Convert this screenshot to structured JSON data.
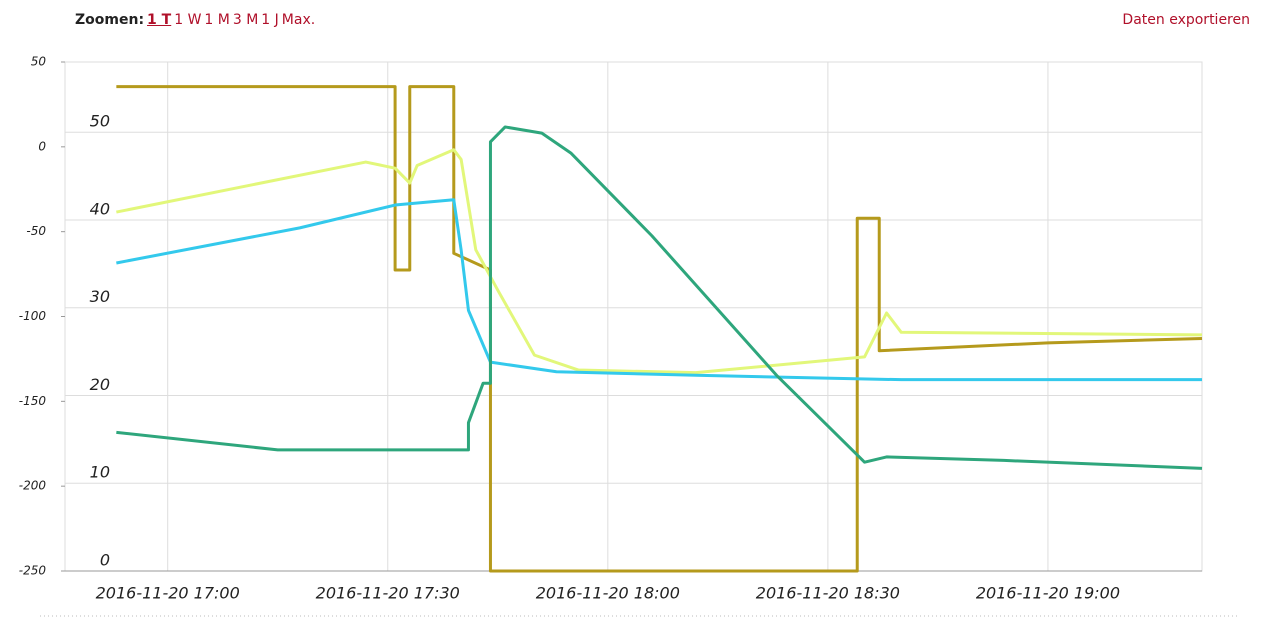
{
  "toolbar": {
    "zoom_label": "Zoomen:",
    "zoom_options": [
      "1 T",
      "1 W",
      "1 M",
      "3 M",
      "1 J",
      "Max."
    ],
    "export": "Daten exportieren"
  },
  "chart_data": {
    "type": "line",
    "xlim": [
      "2016-11-20 16:46",
      "2016-11-20 19:21"
    ],
    "xticks": [
      "2016-11-20 17:00",
      "2016-11-20 17:30",
      "2016-11-20 18:00",
      "2016-11-20 18:30",
      "2016-11-20 19:00"
    ],
    "ylim": [
      0,
      58
    ],
    "yticks": [
      0,
      10,
      20,
      30,
      40,
      50
    ],
    "y2lim": [
      -250,
      50
    ],
    "y2ticks": [
      -250,
      -200,
      -150,
      -100,
      -50,
      0,
      50
    ],
    "grid": true,
    "series": [
      {
        "color": "#b59a1c",
        "x": [
          "2016-11-20 16:53",
          "2016-11-20 17:31",
          "2016-11-20 17:31",
          "2016-11-20 17:33",
          "2016-11-20 17:33",
          "2016-11-20 17:39",
          "2016-11-20 17:39",
          "2016-11-20 17:44",
          "2016-11-20 17:44",
          "2016-11-20 18:34",
          "2016-11-20 18:34",
          "2016-11-20 18:37",
          "2016-11-20 18:37",
          "2016-11-20 19:00",
          "2016-11-20 19:21"
        ],
        "values": [
          55.2,
          55.2,
          34.3,
          34.3,
          55.2,
          55.2,
          36.2,
          34.3,
          0,
          0,
          40.2,
          40.2,
          25.1,
          26.0,
          26.5
        ]
      },
      {
        "color": "#e2f77a",
        "x": [
          "2016-11-20 16:53",
          "2016-11-20 17:27",
          "2016-11-20 17:31",
          "2016-11-20 17:33",
          "2016-11-20 17:34",
          "2016-11-20 17:39",
          "2016-11-20 17:40",
          "2016-11-20 17:42",
          "2016-11-20 17:45",
          "2016-11-20 17:50",
          "2016-11-20 17:56",
          "2016-11-20 18:12",
          "2016-11-20 18:35",
          "2016-11-20 18:38",
          "2016-11-20 18:40",
          "2016-11-20 19:21"
        ],
        "values": [
          40.9,
          46.6,
          45.9,
          44.2,
          46.2,
          48.0,
          46.9,
          36.6,
          32.0,
          24.6,
          22.9,
          22.6,
          24.4,
          29.4,
          27.2,
          26.9
        ]
      },
      {
        "color": "#33c9ec",
        "x": [
          "2016-11-20 16:53",
          "2016-11-20 17:18",
          "2016-11-20 17:31",
          "2016-11-20 17:39",
          "2016-11-20 17:40",
          "2016-11-20 17:41",
          "2016-11-20 17:44",
          "2016-11-20 17:53",
          "2016-11-20 18:12",
          "2016-11-20 18:40",
          "2016-11-20 19:21"
        ],
        "values": [
          35.1,
          39.1,
          41.7,
          42.3,
          36.6,
          29.7,
          23.8,
          22.7,
          22.3,
          21.8,
          21.8
        ]
      },
      {
        "color": "#2ea67c",
        "x": [
          "2016-11-20 16:53",
          "2016-11-20 17:15",
          "2016-11-20 17:41",
          "2016-11-20 17:41",
          "2016-11-20 17:43",
          "2016-11-20 17:44",
          "2016-11-20 17:44",
          "2016-11-20 17:46",
          "2016-11-20 17:51",
          "2016-11-20 17:55",
          "2016-11-20 18:06",
          "2016-11-20 18:23",
          "2016-11-20 18:35",
          "2016-11-20 18:38",
          "2016-11-20 18:54",
          "2016-11-20 19:21"
        ],
        "values": [
          15.8,
          13.8,
          13.8,
          16.9,
          21.4,
          21.4,
          48.9,
          50.6,
          49.9,
          47.6,
          38.2,
          22.3,
          12.4,
          13.0,
          12.6,
          11.7
        ]
      }
    ]
  }
}
